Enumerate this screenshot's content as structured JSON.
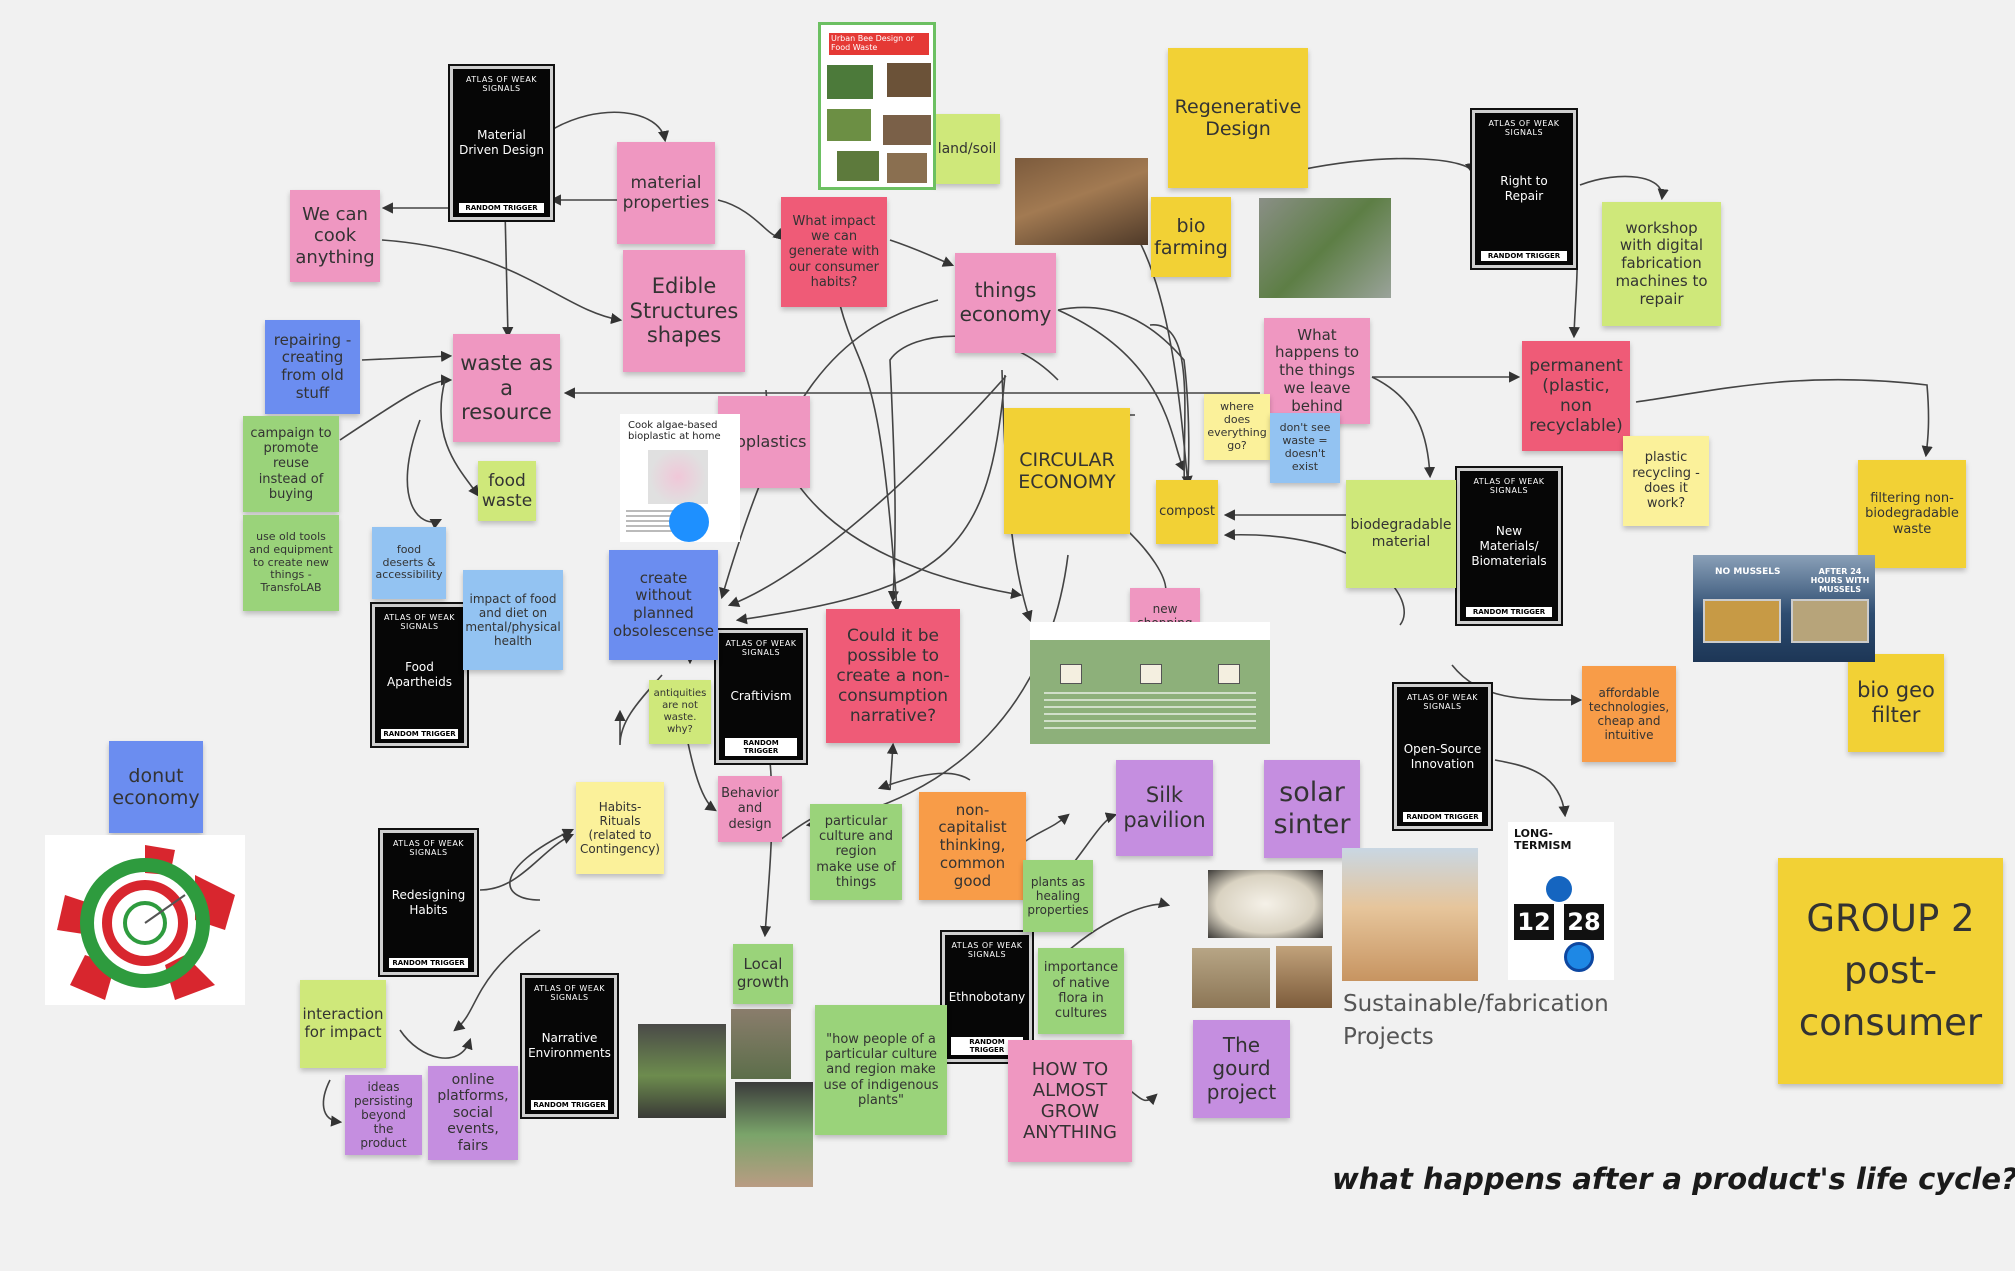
{
  "board": {
    "title": "what happens after a product's life cycle?",
    "group_label": "GROUP 2 post-consumer",
    "section_label": "Sustainable/fabrication Projects"
  },
  "colors": {
    "background": "#f1f1f1",
    "pink": "#ef97c1",
    "red": "#ef5b77",
    "yellow": "#f2d135",
    "light_yellow": "#fbf19a",
    "green": "#9ad37a",
    "lime": "#cfe87a",
    "blue": "#6b8df0",
    "light_blue": "#93c3f2",
    "purple": "#c58ee0",
    "orange": "#f89c48",
    "card": "#060606"
  },
  "cards": {
    "header": "ATLAS OF WEAK SIGNALS",
    "footer": "RANDOM TRIGGER",
    "material_driven": "Material Driven Design",
    "right_to_repair": "Right to Repair",
    "new_materials": "New Materials/ Biomaterials",
    "open_source": "Open-Source Innovation",
    "food_apartheids": "Food Apartheids",
    "craftivism": "Craftivism",
    "redesigning_habits": "Redesigning Habits",
    "narrative_env": "Narrative Environments",
    "ethnobotany": "Ethnobotany"
  },
  "notes": {
    "we_can_cook": "We can cook anything",
    "material_properties": "material properties",
    "edible_structures": "Edible Structures shapes",
    "what_impact": "What impact we can generate with our consumer habits?",
    "land_soil": "land/soil",
    "regenerative": "Regenerative Design",
    "bio_farming": "bio farming",
    "things_economy": "things economy",
    "workshop": "workshop with digital fabrication machines to repair",
    "repairing": "repairing - creating from old stuff",
    "waste_resource": "waste as a resource",
    "what_happens": "What happens to the things we leave behind",
    "permanent": "permanent (plastic, non recyclable)",
    "campaign": "campaign to promote reuse instead of buying",
    "food_waste": "food waste",
    "bioplastics": "bioplastics",
    "circular": "CIRCULAR ECONOMY",
    "where_does": "where does everything go?",
    "dont_see": "don't see waste = doesn't exist",
    "compost": "compost",
    "biodegradable": "biodegradable material",
    "plastic_recycling": "plastic recycling - does it work?",
    "filtering": "filtering non-biodegradable waste",
    "old_tools": "use old tools and equipment to create new things - TransfoLAB",
    "food_deserts": "food deserts & accessibility",
    "impact_food": "impact of food and diet on mental/physical health",
    "create_without": "create without planned obsolescense",
    "could_it_be": "Could it be possible to create a non-consumption narrative?",
    "new_shopping": "new shopping solutions",
    "antiquities": "antiquities are not waste. why?",
    "affordable": "affordable technologies, cheap and intuitive",
    "bio_geo": "bio geo filter",
    "donut": "donut economy",
    "habits_rituals": "Habits-Rituals (related to Contingency)",
    "behavior": "Behavior and design",
    "particular_culture": "particular culture and region make use of things",
    "non_capitalist": "non-capitalist thinking, common good",
    "plants_healing": "plants as healing properties",
    "silk": "Silk pavilion",
    "solar": "solar sinter",
    "local_growth": "Local growth",
    "importance_flora": "importance of native flora in cultures",
    "interaction": "interaction for impact",
    "how_people": "\"how people of a particular culture and region make use of indigenous plants\"",
    "how_to_grow": "HOW TO ALMOST GROW ANYTHING",
    "gourd": "The gourd project",
    "ideas_persisting": "ideas persisting beyond the product",
    "online_platforms": "online platforms, social events, fairs"
  },
  "images": {
    "poster_title": "Urban Bee Design or Food Waste",
    "bioplastic_title": "Cook algae-based bioplastic at home",
    "mussels_left": "NO MUSSELS",
    "mussels_right": "AFTER 24 HOURS WITH MUSSELS",
    "long_termism": "LONG-TERMISM",
    "clock_hours": "12",
    "clock_minutes": "28"
  }
}
